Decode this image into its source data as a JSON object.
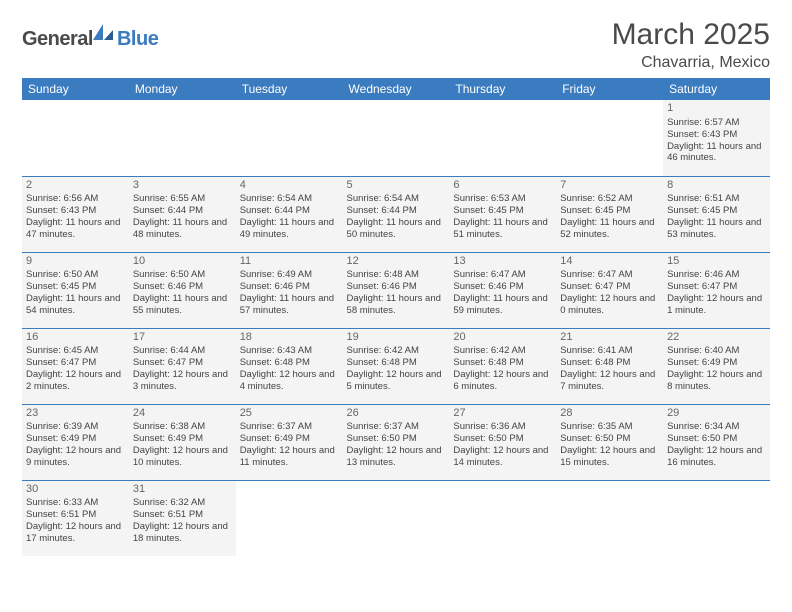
{
  "logo": {
    "part1": "General",
    "part2": "Blue"
  },
  "title": {
    "month": "March 2025",
    "location": "Chavarria, Mexico"
  },
  "colors": {
    "header_bg": "#3b7bbf",
    "header_fg": "#ffffff",
    "cell_bg": "#f4f4f4",
    "text": "#444444"
  },
  "days": [
    "Sunday",
    "Monday",
    "Tuesday",
    "Wednesday",
    "Thursday",
    "Friday",
    "Saturday"
  ],
  "weeks": [
    [
      null,
      null,
      null,
      null,
      null,
      null,
      {
        "n": "1",
        "sr": "Sunrise: 6:57 AM",
        "ss": "Sunset: 6:43 PM",
        "dl": "Daylight: 11 hours and 46 minutes."
      }
    ],
    [
      {
        "n": "2",
        "sr": "Sunrise: 6:56 AM",
        "ss": "Sunset: 6:43 PM",
        "dl": "Daylight: 11 hours and 47 minutes."
      },
      {
        "n": "3",
        "sr": "Sunrise: 6:55 AM",
        "ss": "Sunset: 6:44 PM",
        "dl": "Daylight: 11 hours and 48 minutes."
      },
      {
        "n": "4",
        "sr": "Sunrise: 6:54 AM",
        "ss": "Sunset: 6:44 PM",
        "dl": "Daylight: 11 hours and 49 minutes."
      },
      {
        "n": "5",
        "sr": "Sunrise: 6:54 AM",
        "ss": "Sunset: 6:44 PM",
        "dl": "Daylight: 11 hours and 50 minutes."
      },
      {
        "n": "6",
        "sr": "Sunrise: 6:53 AM",
        "ss": "Sunset: 6:45 PM",
        "dl": "Daylight: 11 hours and 51 minutes."
      },
      {
        "n": "7",
        "sr": "Sunrise: 6:52 AM",
        "ss": "Sunset: 6:45 PM",
        "dl": "Daylight: 11 hours and 52 minutes."
      },
      {
        "n": "8",
        "sr": "Sunrise: 6:51 AM",
        "ss": "Sunset: 6:45 PM",
        "dl": "Daylight: 11 hours and 53 minutes."
      }
    ],
    [
      {
        "n": "9",
        "sr": "Sunrise: 6:50 AM",
        "ss": "Sunset: 6:45 PM",
        "dl": "Daylight: 11 hours and 54 minutes."
      },
      {
        "n": "10",
        "sr": "Sunrise: 6:50 AM",
        "ss": "Sunset: 6:46 PM",
        "dl": "Daylight: 11 hours and 55 minutes."
      },
      {
        "n": "11",
        "sr": "Sunrise: 6:49 AM",
        "ss": "Sunset: 6:46 PM",
        "dl": "Daylight: 11 hours and 57 minutes."
      },
      {
        "n": "12",
        "sr": "Sunrise: 6:48 AM",
        "ss": "Sunset: 6:46 PM",
        "dl": "Daylight: 11 hours and 58 minutes."
      },
      {
        "n": "13",
        "sr": "Sunrise: 6:47 AM",
        "ss": "Sunset: 6:46 PM",
        "dl": "Daylight: 11 hours and 59 minutes."
      },
      {
        "n": "14",
        "sr": "Sunrise: 6:47 AM",
        "ss": "Sunset: 6:47 PM",
        "dl": "Daylight: 12 hours and 0 minutes."
      },
      {
        "n": "15",
        "sr": "Sunrise: 6:46 AM",
        "ss": "Sunset: 6:47 PM",
        "dl": "Daylight: 12 hours and 1 minute."
      }
    ],
    [
      {
        "n": "16",
        "sr": "Sunrise: 6:45 AM",
        "ss": "Sunset: 6:47 PM",
        "dl": "Daylight: 12 hours and 2 minutes."
      },
      {
        "n": "17",
        "sr": "Sunrise: 6:44 AM",
        "ss": "Sunset: 6:47 PM",
        "dl": "Daylight: 12 hours and 3 minutes."
      },
      {
        "n": "18",
        "sr": "Sunrise: 6:43 AM",
        "ss": "Sunset: 6:48 PM",
        "dl": "Daylight: 12 hours and 4 minutes."
      },
      {
        "n": "19",
        "sr": "Sunrise: 6:42 AM",
        "ss": "Sunset: 6:48 PM",
        "dl": "Daylight: 12 hours and 5 minutes."
      },
      {
        "n": "20",
        "sr": "Sunrise: 6:42 AM",
        "ss": "Sunset: 6:48 PM",
        "dl": "Daylight: 12 hours and 6 minutes."
      },
      {
        "n": "21",
        "sr": "Sunrise: 6:41 AM",
        "ss": "Sunset: 6:48 PM",
        "dl": "Daylight: 12 hours and 7 minutes."
      },
      {
        "n": "22",
        "sr": "Sunrise: 6:40 AM",
        "ss": "Sunset: 6:49 PM",
        "dl": "Daylight: 12 hours and 8 minutes."
      }
    ],
    [
      {
        "n": "23",
        "sr": "Sunrise: 6:39 AM",
        "ss": "Sunset: 6:49 PM",
        "dl": "Daylight: 12 hours and 9 minutes."
      },
      {
        "n": "24",
        "sr": "Sunrise: 6:38 AM",
        "ss": "Sunset: 6:49 PM",
        "dl": "Daylight: 12 hours and 10 minutes."
      },
      {
        "n": "25",
        "sr": "Sunrise: 6:37 AM",
        "ss": "Sunset: 6:49 PM",
        "dl": "Daylight: 12 hours and 11 minutes."
      },
      {
        "n": "26",
        "sr": "Sunrise: 6:37 AM",
        "ss": "Sunset: 6:50 PM",
        "dl": "Daylight: 12 hours and 13 minutes."
      },
      {
        "n": "27",
        "sr": "Sunrise: 6:36 AM",
        "ss": "Sunset: 6:50 PM",
        "dl": "Daylight: 12 hours and 14 minutes."
      },
      {
        "n": "28",
        "sr": "Sunrise: 6:35 AM",
        "ss": "Sunset: 6:50 PM",
        "dl": "Daylight: 12 hours and 15 minutes."
      },
      {
        "n": "29",
        "sr": "Sunrise: 6:34 AM",
        "ss": "Sunset: 6:50 PM",
        "dl": "Daylight: 12 hours and 16 minutes."
      }
    ],
    [
      {
        "n": "30",
        "sr": "Sunrise: 6:33 AM",
        "ss": "Sunset: 6:51 PM",
        "dl": "Daylight: 12 hours and 17 minutes."
      },
      {
        "n": "31",
        "sr": "Sunrise: 6:32 AM",
        "ss": "Sunset: 6:51 PM",
        "dl": "Daylight: 12 hours and 18 minutes."
      },
      null,
      null,
      null,
      null,
      null
    ]
  ]
}
